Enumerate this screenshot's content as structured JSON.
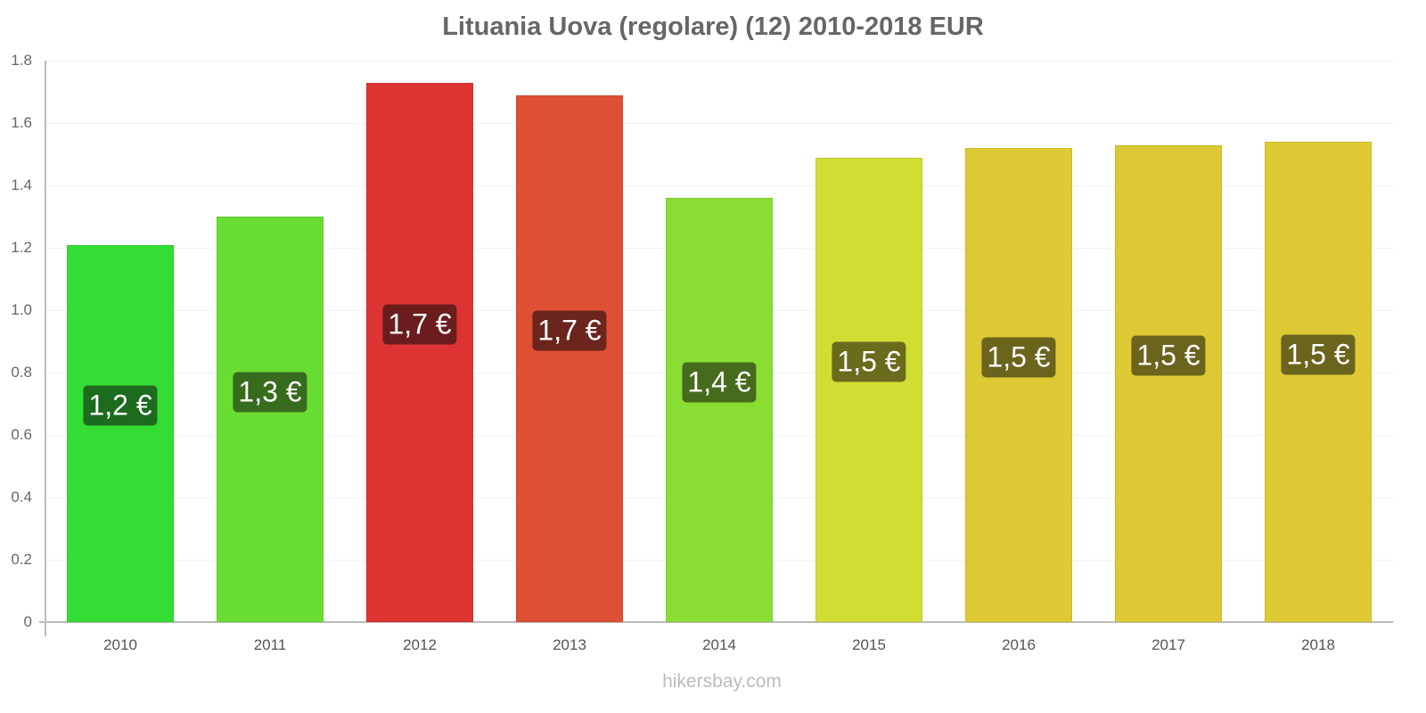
{
  "chart_data": {
    "type": "bar",
    "title": "Lituania Uova (regolare) (12) 2010-2018 EUR",
    "xlabel": "",
    "ylabel": "",
    "ylim": [
      0,
      1.8
    ],
    "yticks": [
      "0",
      "0.2",
      "0.4",
      "0.6",
      "0.8",
      "1.0",
      "1.2",
      "1.4",
      "1.6",
      "1.8"
    ],
    "grid": true,
    "categories": [
      "2010",
      "2011",
      "2012",
      "2013",
      "2014",
      "2015",
      "2016",
      "2017",
      "2018"
    ],
    "values": [
      1.21,
      1.3,
      1.73,
      1.69,
      1.36,
      1.49,
      1.52,
      1.53,
      1.54
    ],
    "data_labels": [
      "1,2 €",
      "1,3 €",
      "1,7 €",
      "1,7 €",
      "1,4 €",
      "1,5 €",
      "1,5 €",
      "1,5 €",
      "1,5 €"
    ],
    "bar_colors": [
      "#33dd33",
      "#6add33",
      "#dd3333",
      "#dd5033",
      "#8add33",
      "#d0dd33",
      "#ddc933",
      "#ddc933",
      "#ddc933"
    ],
    "label_colors": [
      "#1d6b1d",
      "#376b1d",
      "#6b1d1d",
      "#6b251d",
      "#476b1d",
      "#6b6b1d",
      "#6b641d",
      "#6b641d",
      "#6b641d"
    ]
  },
  "footer": "hikersbay.com"
}
